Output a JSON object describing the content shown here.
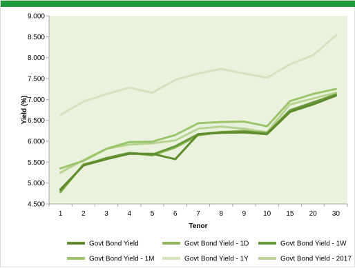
{
  "colors": {
    "header_bar": "#1e9a3a",
    "plot_background": "#eaf1dd",
    "axis": "#a6a6a6"
  },
  "chart_data": {
    "type": "line",
    "title": "",
    "xlabel": "Tenor",
    "ylabel": "Yield (%)",
    "categories": [
      "1",
      "2",
      "3",
      "4",
      "5",
      "6",
      "7",
      "8",
      "9",
      "10",
      "15",
      "20",
      "30"
    ],
    "ylim": [
      4.5,
      9.0
    ],
    "y_ticks": [
      "4.500",
      "5.000",
      "5.500",
      "6.000",
      "6.500",
      "7.000",
      "7.500",
      "8.000",
      "8.500",
      "9.000"
    ],
    "grid": false,
    "legend_position": "bottom",
    "series": [
      {
        "name": "Govt Bond Yield",
        "color": "#5f8a2e",
        "values": [
          4.85,
          5.42,
          5.57,
          5.7,
          5.7,
          5.57,
          6.17,
          6.2,
          6.21,
          6.17,
          6.7,
          6.88,
          7.09
        ]
      },
      {
        "name": "Govt Bond Yield - 1D",
        "color": "#8fb85a",
        "values": [
          4.78,
          5.45,
          5.58,
          5.72,
          5.66,
          5.85,
          6.14,
          6.22,
          6.25,
          6.2,
          6.72,
          6.92,
          7.13
        ]
      },
      {
        "name": "Govt Bond Yield - 1W",
        "color": "#6a9a38",
        "values": [
          4.82,
          5.43,
          5.6,
          5.72,
          5.68,
          5.88,
          6.17,
          6.22,
          6.23,
          6.19,
          6.74,
          6.93,
          7.11
        ]
      },
      {
        "name": "Govt Bond Yield - 1M",
        "color": "#9cc46a",
        "values": [
          5.35,
          5.53,
          5.82,
          5.98,
          5.99,
          6.15,
          6.43,
          6.46,
          6.47,
          6.36,
          6.96,
          7.13,
          7.25
        ]
      },
      {
        "name": "Govt Bond Yield - 1Y",
        "color": "#d3e3bd",
        "values": [
          6.63,
          6.95,
          7.13,
          7.28,
          7.16,
          7.47,
          7.62,
          7.73,
          7.62,
          7.52,
          7.84,
          8.06,
          8.53
        ]
      },
      {
        "name": "Govt Bond Yield - 2017",
        "color": "#b9d392",
        "values": [
          5.25,
          5.55,
          5.82,
          5.92,
          5.95,
          6.02,
          6.3,
          6.35,
          6.3,
          6.22,
          6.88,
          7.02,
          7.16
        ]
      }
    ]
  }
}
